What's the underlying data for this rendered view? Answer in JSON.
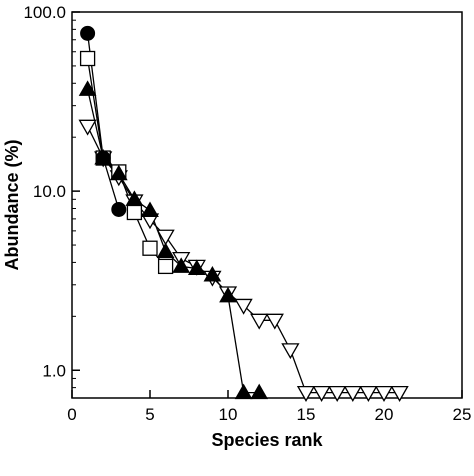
{
  "chart_data": {
    "type": "line",
    "title": "",
    "xlabel": "Species rank",
    "ylabel": "Abundance (%)",
    "xlim": [
      0,
      25
    ],
    "ylim": [
      0.7,
      100
    ],
    "yscale": "log",
    "grid": false,
    "xticks": [
      0,
      5,
      10,
      15,
      20,
      25
    ],
    "yticks": [
      {
        "value": 1,
        "label": "1.0"
      },
      {
        "value": 10,
        "label": "10.0"
      },
      {
        "value": 100,
        "label": "100.0"
      }
    ],
    "series": [
      {
        "marker": "filled-circle",
        "x": [
          1,
          2,
          3
        ],
        "y": [
          76,
          15.3,
          7.9
        ]
      },
      {
        "marker": "open-square",
        "x": [
          1,
          2,
          3,
          4,
          5,
          6
        ],
        "y": [
          55,
          15.3,
          12.8,
          7.6,
          4.8,
          3.8
        ]
      },
      {
        "marker": "filled-triangle-up",
        "x": [
          1,
          2,
          3,
          4,
          5,
          6,
          7,
          8,
          9,
          10,
          11,
          12
        ],
        "y": [
          37,
          15.3,
          12.5,
          9.0,
          7.8,
          4.6,
          3.8,
          3.7,
          3.4,
          2.6,
          0.75,
          0.75
        ]
      },
      {
        "marker": "open-triangle-down",
        "x": [
          1,
          2,
          3,
          4,
          5,
          6,
          7,
          8,
          9,
          10,
          11,
          12,
          13,
          14,
          15,
          16,
          17,
          18,
          19,
          20,
          21
        ],
        "y": [
          23,
          15.3,
          12.0,
          8.8,
          6.9,
          5.6,
          4.2,
          3.8,
          3.3,
          2.7,
          2.3,
          1.9,
          1.9,
          1.3,
          0.75,
          0.75,
          0.75,
          0.75,
          0.75,
          0.75,
          0.75
        ]
      }
    ]
  }
}
